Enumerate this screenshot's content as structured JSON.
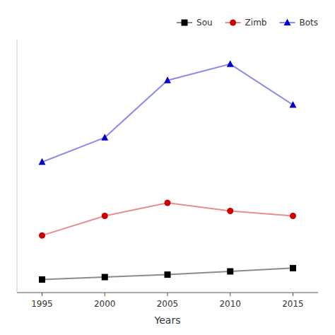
{
  "chart_data": {
    "type": "line",
    "x": [
      1995,
      2000,
      2005,
      2010,
      2015
    ],
    "series": [
      {
        "name": "Sou",
        "color": "#000000",
        "marker": "square",
        "values": [
          8000,
          9500,
          11000,
          13000,
          15000
        ]
      },
      {
        "name": "Zimb",
        "color": "#cc0000",
        "marker": "circle",
        "values": [
          35000,
          47000,
          55000,
          50000,
          47000
        ]
      },
      {
        "name": "Bots",
        "color": "#0000cc",
        "marker": "triangle",
        "values": [
          80000,
          95000,
          130000,
          140000,
          115000
        ]
      }
    ],
    "xlabel": "Years",
    "xlim": [
      1993,
      2017
    ],
    "xticks": [
      1995,
      2000,
      2005,
      2010,
      2015
    ],
    "ylim": [
      0,
      155000
    ],
    "tick_labels": "x",
    "grid": false,
    "legend": "upper right"
  }
}
